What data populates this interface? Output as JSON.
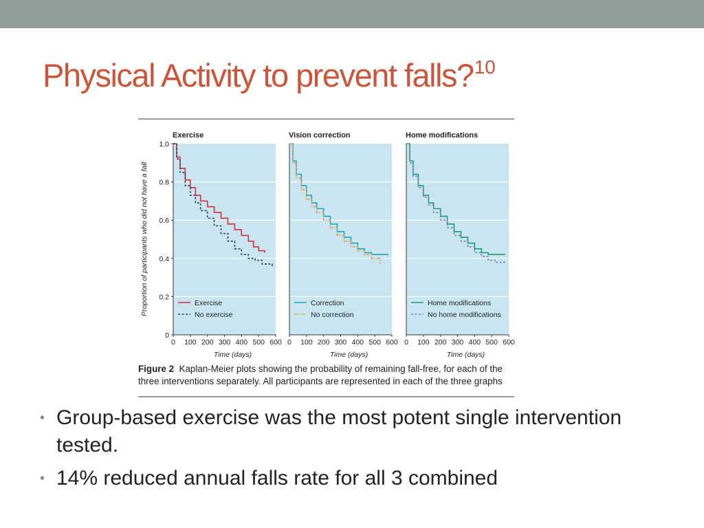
{
  "slide": {
    "title": "Physical Activity to prevent falls?",
    "title_superscript": "10",
    "bullets": [
      "Group-based exercise was the most potent single intervention tested.",
      "14% reduced annual falls rate for all 3 combined"
    ],
    "colors": {
      "title": "#c9553a",
      "topbar": "#8f9e97",
      "panel_bg": "#c9e6f0"
    }
  },
  "figure": {
    "caption_label": "Figure 2",
    "caption_text_line1": "Kaplan-Meier plots showing the probability of remaining fall-free, for each of the",
    "caption_text_line2": "three interventions separately. All participants are represented in each of the three graphs"
  },
  "chart_data": [
    {
      "type": "line",
      "title": "Exercise",
      "xlabel": "Time (days)",
      "ylabel": "Proportion of participants who did not have a fall",
      "xlim": [
        0,
        600
      ],
      "ylim": [
        0,
        1.0
      ],
      "xticks": [
        0,
        100,
        200,
        300,
        400,
        500,
        600
      ],
      "yticks": [
        "0",
        "0.2",
        "0.4",
        "0.6",
        "0.8",
        "1.0"
      ],
      "legend_position": "bottom-left",
      "series": [
        {
          "name": "Exercise",
          "color": "#d2303e",
          "dash": "solid",
          "points": [
            [
              0,
              1.0
            ],
            [
              20,
              0.93
            ],
            [
              40,
              0.87
            ],
            [
              70,
              0.81
            ],
            [
              100,
              0.77
            ],
            [
              130,
              0.73
            ],
            [
              160,
              0.7
            ],
            [
              200,
              0.67
            ],
            [
              240,
              0.64
            ],
            [
              280,
              0.61
            ],
            [
              320,
              0.58
            ],
            [
              360,
              0.55
            ],
            [
              400,
              0.52
            ],
            [
              440,
              0.49
            ],
            [
              470,
              0.46
            ],
            [
              500,
              0.44
            ],
            [
              535,
              0.43
            ]
          ]
        },
        {
          "name": "No exercise",
          "color": "#2e3d5c",
          "dash": "dashed",
          "points": [
            [
              0,
              1.0
            ],
            [
              20,
              0.92
            ],
            [
              40,
              0.85
            ],
            [
              70,
              0.78
            ],
            [
              100,
              0.73
            ],
            [
              130,
              0.69
            ],
            [
              160,
              0.65
            ],
            [
              200,
              0.61
            ],
            [
              240,
              0.57
            ],
            [
              280,
              0.53
            ],
            [
              320,
              0.49
            ],
            [
              360,
              0.45
            ],
            [
              400,
              0.42
            ],
            [
              440,
              0.4
            ],
            [
              480,
              0.39
            ],
            [
              520,
              0.37
            ],
            [
              580,
              0.36
            ]
          ]
        }
      ]
    },
    {
      "type": "line",
      "title": "Vision correction",
      "xlabel": "Time (days)",
      "ylabel": "",
      "xlim": [
        0,
        600
      ],
      "ylim": [
        0,
        1.0
      ],
      "xticks": [
        0,
        100,
        200,
        300,
        400,
        500,
        600
      ],
      "legend_position": "bottom-left",
      "series": [
        {
          "name": "Correction",
          "color": "#1aa7b4",
          "dash": "solid",
          "points": [
            [
              0,
              1.0
            ],
            [
              20,
              0.91
            ],
            [
              40,
              0.84
            ],
            [
              70,
              0.78
            ],
            [
              100,
              0.73
            ],
            [
              130,
              0.69
            ],
            [
              160,
              0.66
            ],
            [
              200,
              0.62
            ],
            [
              240,
              0.58
            ],
            [
              280,
              0.54
            ],
            [
              320,
              0.51
            ],
            [
              360,
              0.48
            ],
            [
              400,
              0.45
            ],
            [
              440,
              0.43
            ],
            [
              480,
              0.42
            ],
            [
              580,
              0.42
            ]
          ]
        },
        {
          "name": "No correction",
          "color": "#e89a5c",
          "dash": "dashdot",
          "points": [
            [
              0,
              1.0
            ],
            [
              20,
              0.9
            ],
            [
              40,
              0.82
            ],
            [
              70,
              0.76
            ],
            [
              100,
              0.71
            ],
            [
              130,
              0.67
            ],
            [
              160,
              0.64
            ],
            [
              200,
              0.6
            ],
            [
              240,
              0.56
            ],
            [
              280,
              0.52
            ],
            [
              320,
              0.49
            ],
            [
              360,
              0.46
            ],
            [
              400,
              0.44
            ],
            [
              440,
              0.42
            ],
            [
              480,
              0.4
            ],
            [
              530,
              0.37
            ]
          ]
        }
      ]
    },
    {
      "type": "line",
      "title": "Home modifications",
      "xlabel": "Time (days)",
      "ylabel": "",
      "xlim": [
        0,
        600
      ],
      "ylim": [
        0,
        1.0
      ],
      "xticks": [
        0,
        100,
        200,
        300,
        400,
        500,
        600
      ],
      "legend_position": "bottom-left",
      "series": [
        {
          "name": "Home modifications",
          "color": "#1a9a78",
          "dash": "solid",
          "points": [
            [
              0,
              1.0
            ],
            [
              20,
              0.91
            ],
            [
              40,
              0.84
            ],
            [
              70,
              0.78
            ],
            [
              100,
              0.73
            ],
            [
              130,
              0.69
            ],
            [
              160,
              0.66
            ],
            [
              200,
              0.62
            ],
            [
              240,
              0.58
            ],
            [
              280,
              0.54
            ],
            [
              320,
              0.51
            ],
            [
              360,
              0.48
            ],
            [
              400,
              0.45
            ],
            [
              440,
              0.43
            ],
            [
              480,
              0.42
            ],
            [
              580,
              0.42
            ]
          ]
        },
        {
          "name": "No home modifications",
          "color": "#7a84ac",
          "dash": "dashed",
          "points": [
            [
              0,
              1.0
            ],
            [
              20,
              0.9
            ],
            [
              40,
              0.83
            ],
            [
              70,
              0.77
            ],
            [
              100,
              0.72
            ],
            [
              130,
              0.68
            ],
            [
              160,
              0.64
            ],
            [
              200,
              0.6
            ],
            [
              240,
              0.56
            ],
            [
              280,
              0.52
            ],
            [
              320,
              0.49
            ],
            [
              360,
              0.46
            ],
            [
              400,
              0.43
            ],
            [
              440,
              0.41
            ],
            [
              480,
              0.39
            ],
            [
              520,
              0.38
            ],
            [
              580,
              0.38
            ]
          ]
        }
      ]
    }
  ]
}
